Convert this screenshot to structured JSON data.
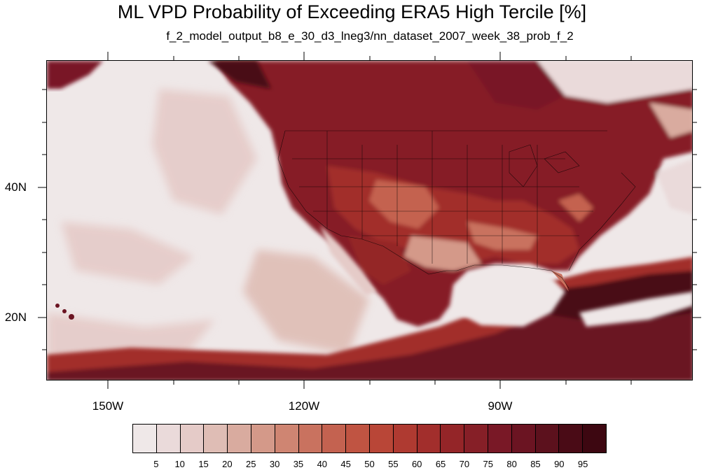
{
  "title": "ML VPD Probability of Exceeding ERA5 High Tercile [%]",
  "subtitle": "f_2_model_output_b8_e_30_d3_lneg3/nn_dataset_2007_week_38_prob_f_2",
  "map": {
    "lon_labels": [
      "150W",
      "120W",
      "90W"
    ],
    "lat_labels": [
      "40N",
      "20N"
    ]
  },
  "colorbar": {
    "labels": [
      "5",
      "10",
      "15",
      "20",
      "25",
      "30",
      "35",
      "40",
      "45",
      "50",
      "55",
      "60",
      "65",
      "70",
      "75",
      "80",
      "85",
      "90",
      "95"
    ],
    "colors": [
      "#efe8e8",
      "#eadada",
      "#e5cbc8",
      "#dfbdb5",
      "#d9ab9f",
      "#d49989",
      "#cf8572",
      "#c9725f",
      "#c46250",
      "#c05442",
      "#b94637",
      "#af3a31",
      "#a22e2c",
      "#942528",
      "#861f27",
      "#791826",
      "#6b1422",
      "#5c111d",
      "#4a0b16",
      "#3d0711"
    ]
  }
}
